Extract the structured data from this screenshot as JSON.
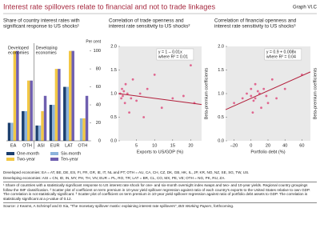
{
  "header": {
    "title": "Interest rate spillovers relate to financial and not to trade linkages",
    "graph_id": "Graph VI.C"
  },
  "chart_data": [
    {
      "type": "bar",
      "title": [
        "Share of country interest rates with",
        "significant response to US shocks¹"
      ],
      "y_label": "Per cent",
      "groups": [
        {
          "label": [
            "Developed",
            "economies"
          ],
          "size": 2
        },
        {
          "label": [
            "Developing",
            "economies"
          ],
          "size": 4
        }
      ],
      "categories": [
        "EA",
        "OTH",
        "ASI",
        "EUR",
        "LAT",
        "OTH"
      ],
      "series": [
        {
          "name": "One-month",
          "color": "#1c3f6e",
          "values": [
            20,
            33,
            17,
            40,
            60,
            0
          ]
        },
        {
          "name": "Six-month",
          "color": "#8db4dc",
          "values": [
            20,
            33,
            17,
            40,
            60,
            25
          ]
        },
        {
          "name": "Two-year",
          "color": "#f2c744",
          "values": [
            100,
            67,
            33,
            80,
            100,
            25
          ]
        },
        {
          "name": "Ten-year",
          "color": "#6f5fb0",
          "values": [
            100,
            67,
            50,
            80,
            100,
            50
          ]
        }
      ],
      "ylim": [
        0,
        105
      ],
      "yticks": [
        0,
        20,
        40,
        60,
        80,
        100
      ]
    },
    {
      "type": "scatter",
      "title": [
        "Correlation of trade openness and",
        "interest rate sensitivity to US shocks²"
      ],
      "x_label": "Exports to US/GDP (%)",
      "y_label": "Beta-premium coefficients",
      "annotation": [
        "y = 1 – 0.01x",
        "where R² = 0.01"
      ],
      "color": "#e0668f",
      "line_color": "#b21f3b",
      "x": [
        0.5,
        0.8,
        1,
        1.2,
        1.5,
        1.8,
        2,
        2.5,
        3,
        3.5,
        4,
        5,
        6,
        7,
        8,
        10,
        12,
        15,
        18,
        20,
        21
      ],
      "values": [
        1.0,
        0.9,
        1.1,
        0.95,
        1.05,
        0.8,
        1.2,
        1.0,
        0.6,
        0.9,
        1.3,
        0.85,
        1.0,
        0.5,
        1.1,
        1.4,
        0.7,
        0.9,
        0.95,
        1.6,
        0.8
      ],
      "fit": {
        "x": [
          0,
          23
        ],
        "y": [
          1,
          0.77
        ]
      },
      "xlim": [
        0,
        23
      ],
      "xticks": [
        5,
        10,
        15,
        20
      ],
      "ylim": [
        0,
        2
      ],
      "yticks": [
        {
          "value": 0,
          "label": "0.0"
        },
        0.5,
        {
          "value": 1,
          "label": "1.0"
        },
        1.5,
        {
          "value": 2,
          "label": "2.0"
        }
      ]
    },
    {
      "type": "scatter",
      "title": [
        "Correlation of financial openness and",
        "interest rate sensitivity to US shocks³"
      ],
      "x_label": "Portfolio debt (%)",
      "y_label": "Beta-premium coefficients",
      "annotation": [
        "y = 0.9 + 0.008x",
        "where R² = 0.04"
      ],
      "color": "#e0668f",
      "line_color": "#b21f3b",
      "x": [
        -20,
        -10,
        -5,
        0,
        0,
        2,
        3,
        5,
        5,
        8,
        10,
        12,
        15,
        18,
        20,
        25,
        30,
        40,
        55,
        60
      ],
      "values": [
        0.8,
        0.9,
        1.0,
        0.95,
        1.1,
        0.6,
        0.85,
        1.2,
        0.9,
        1.05,
        1.0,
        0.7,
        1.1,
        0.95,
        0.8,
        1.3,
        0.9,
        1.1,
        1.9,
        1.4
      ],
      "fit": {
        "x": [
          -30,
          70
        ],
        "y": [
          0.66,
          1.46
        ]
      },
      "xlim": [
        -30,
        70
      ],
      "xticks": [
        {
          "value": -20,
          "label": "–20"
        },
        0,
        20,
        40,
        60
      ],
      "ylim": [
        0,
        2
      ],
      "yticks": [
        {
          "value": 0,
          "label": "0.0"
        },
        0.5,
        {
          "value": 1,
          "label": "1.0"
        },
        1.5,
        {
          "value": 2,
          "label": "2.0"
        }
      ]
    }
  ],
  "notes": {
    "developed": "Developed economies: EA = AT, BE, DE, ES, FI, FR, GR, IE, IT, NL and PT; OTH = AU, CA, CH, CZ, DK, GB, HK, IL, JP, KR, NO, NZ, SE, SG, TW, US.",
    "developing": "Developing economies: ASI = CN, ID, IN, MY, PH, TH, VN; EUR = PL, RO, TR; LAT = BR, CL, CO, MX, PE, VE; OTH = NG, PK, RU, ZA.",
    "footnotes": [
      "¹ Share of countries with a statistically significant response to US interest rate shock for one- and six-month overnight index swaps and two- and 10-year yields. Regional country groupings follow the IMF classification.",
      "² Scatter plot of coefficient on term premium in 10-year yield spillover regression against ratio of each country's exports to the United States relative to own GDP. The correlation is not statistically significant.",
      "³ Scatter plot of coefficient on term premium in 10-year yield spillover regression against ratio of portfolio debt assets to GDP. The correlation is statistically significant at a p-value of 0.12."
    ]
  },
  "source": [
    "Source: J Kearns, A Schrimpf and D Xia, \"The monetary spillover matrix: explaining interest rate spillovers\", ",
    "BIS Working Papers",
    ", forthcoming."
  ]
}
